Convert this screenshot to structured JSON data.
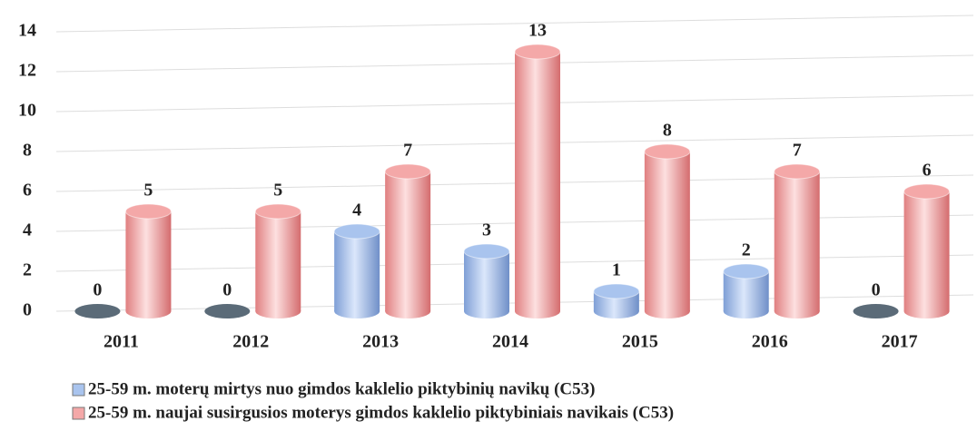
{
  "chart_data": {
    "type": "bar",
    "categories": [
      "2011",
      "2012",
      "2013",
      "2014",
      "2015",
      "2016",
      "2017"
    ],
    "series": [
      {
        "name": "25-59 m. moterų mirtys nuo gimdos kaklelio piktybinių navikų (C53)",
        "color": "#a9c4ee",
        "values": [
          0,
          0,
          4,
          3,
          1,
          2,
          0
        ]
      },
      {
        "name": "25-59 m. naujai susirgusios moterys gimdos kaklelio piktybiniais navikais (C53)",
        "color": "#f4a8a8",
        "values": [
          5,
          5,
          7,
          13,
          8,
          7,
          6
        ]
      }
    ],
    "ylim": [
      0,
      14
    ],
    "yticks": [
      0,
      2,
      4,
      6,
      8,
      10,
      12,
      14
    ],
    "grid": true
  }
}
